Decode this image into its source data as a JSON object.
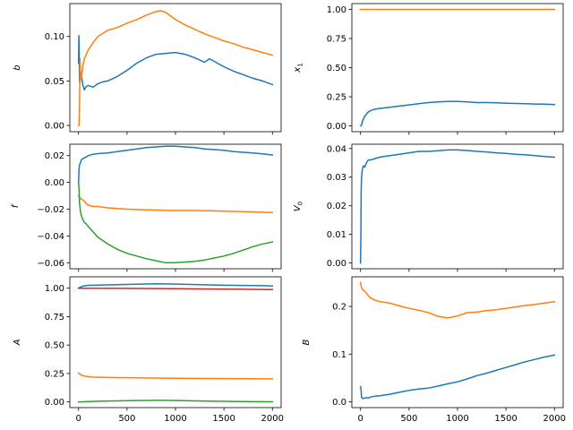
{
  "chart_data": [
    {
      "type": "line",
      "ylabel": "b",
      "xlim": [
        -90,
        2090
      ],
      "ylim": [
        -0.007,
        0.137
      ],
      "yticks": [
        0.0,
        0.05,
        0.1
      ],
      "ytick_labels": [
        "0.00",
        "0.05",
        "0.10"
      ],
      "xticks": [
        0,
        500,
        1000,
        1500,
        2000
      ],
      "xtick_labels": [],
      "series": [
        {
          "color": "#1f77b4",
          "x": [
            0,
            3,
            6,
            10,
            15,
            20,
            30,
            45,
            60,
            80,
            100,
            150,
            200,
            250,
            300,
            400,
            500,
            600,
            700,
            800,
            900,
            1000,
            1100,
            1200,
            1300,
            1350,
            1400,
            1500,
            1600,
            1700,
            1800,
            1900,
            2000
          ],
          "y": [
            0.07,
            0.101,
            0.085,
            0.05,
            0.048,
            0.06,
            0.057,
            0.045,
            0.04,
            0.044,
            0.045,
            0.043,
            0.047,
            0.049,
            0.05,
            0.055,
            0.062,
            0.07,
            0.076,
            0.08,
            0.081,
            0.082,
            0.08,
            0.076,
            0.071,
            0.075,
            0.072,
            0.066,
            0.061,
            0.057,
            0.053,
            0.05,
            0.046
          ]
        },
        {
          "color": "#ff7f0e",
          "x": [
            0,
            5,
            10,
            15,
            20,
            30,
            40,
            60,
            80,
            100,
            150,
            200,
            300,
            400,
            500,
            600,
            700,
            800,
            850,
            900,
            1000,
            1100,
            1200,
            1300,
            1400,
            1500,
            1600,
            1700,
            1800,
            1900,
            2000
          ],
          "y": [
            0.0,
            0.0,
            0.02,
            0.075,
            0.06,
            0.052,
            0.065,
            0.075,
            0.08,
            0.085,
            0.093,
            0.1,
            0.107,
            0.11,
            0.115,
            0.119,
            0.124,
            0.128,
            0.129,
            0.127,
            0.119,
            0.113,
            0.108,
            0.103,
            0.099,
            0.095,
            0.092,
            0.088,
            0.085,
            0.082,
            0.079
          ]
        }
      ]
    },
    {
      "type": "line",
      "ylabel": "x1",
      "xlim": [
        -90,
        2090
      ],
      "ylim": [
        -0.05,
        1.05
      ],
      "yticks": [
        0.0,
        0.25,
        0.5,
        0.75,
        1.0
      ],
      "ytick_labels": [
        "0.00",
        "0.25",
        "0.50",
        "0.75",
        "1.00"
      ],
      "xticks": [
        0,
        500,
        1000,
        1500,
        2000
      ],
      "xtick_labels": [],
      "series": [
        {
          "color": "#1f77b4",
          "x": [
            0,
            10,
            20,
            40,
            60,
            80,
            100,
            150,
            200,
            300,
            400,
            500,
            600,
            700,
            800,
            900,
            1000,
            1100,
            1200,
            1300,
            1400,
            1500,
            1600,
            1700,
            1800,
            1900,
            2000
          ],
          "y": [
            0.0,
            0.005,
            0.04,
            0.08,
            0.1,
            0.12,
            0.13,
            0.145,
            0.15,
            0.16,
            0.17,
            0.18,
            0.19,
            0.2,
            0.205,
            0.21,
            0.21,
            0.205,
            0.2,
            0.2,
            0.198,
            0.195,
            0.192,
            0.19,
            0.188,
            0.186,
            0.183
          ]
        },
        {
          "color": "#ff7f0e",
          "x": [
            0,
            2000
          ],
          "y": [
            1.0,
            1.0
          ]
        }
      ]
    },
    {
      "type": "line",
      "ylabel": "f",
      "xlim": [
        -90,
        2090
      ],
      "ylim": [
        -0.0645,
        0.0285
      ],
      "yticks": [
        -0.06,
        -0.04,
        -0.02,
        0.0,
        0.02
      ],
      "ytick_labels": [
        "−0.06",
        "−0.04",
        "−0.02",
        "0.00",
        "0.02"
      ],
      "xticks": [
        0,
        500,
        1000,
        1500,
        2000
      ],
      "xtick_labels": [],
      "series": [
        {
          "color": "#1f77b4",
          "x": [
            0,
            5,
            10,
            20,
            30,
            50,
            80,
            100,
            150,
            200,
            300,
            400,
            500,
            600,
            700,
            800,
            900,
            1000,
            1100,
            1200,
            1300,
            1400,
            1500,
            1600,
            1700,
            1800,
            1900,
            2000
          ],
          "y": [
            0.0,
            0.01,
            0.013,
            0.015,
            0.017,
            0.018,
            0.019,
            0.02,
            0.021,
            0.0215,
            0.022,
            0.023,
            0.024,
            0.025,
            0.026,
            0.0265,
            0.027,
            0.027,
            0.0265,
            0.026,
            0.025,
            0.0245,
            0.024,
            0.023,
            0.0225,
            0.022,
            0.0213,
            0.0205
          ]
        },
        {
          "color": "#ff7f0e",
          "x": [
            0,
            10,
            20,
            40,
            60,
            80,
            100,
            150,
            200,
            300,
            400,
            500,
            600,
            800,
            1000,
            1200,
            1400,
            1600,
            1800,
            2000
          ],
          "y": [
            -0.01,
            -0.011,
            -0.012,
            -0.013,
            -0.014,
            -0.016,
            -0.017,
            -0.018,
            -0.018,
            -0.019,
            -0.0195,
            -0.02,
            -0.0203,
            -0.0207,
            -0.021,
            -0.021,
            -0.0213,
            -0.0217,
            -0.022,
            -0.0225
          ]
        },
        {
          "color": "#2ca02c",
          "x": [
            0,
            5,
            10,
            20,
            30,
            40,
            60,
            80,
            100,
            150,
            200,
            300,
            400,
            500,
            600,
            700,
            800,
            900,
            1000,
            1100,
            1200,
            1300,
            1400,
            1500,
            1600,
            1700,
            1800,
            1900,
            2000
          ],
          "y": [
            0.0,
            -0.005,
            -0.015,
            -0.022,
            -0.025,
            -0.027,
            -0.03,
            -0.031,
            -0.033,
            -0.037,
            -0.041,
            -0.046,
            -0.05,
            -0.053,
            -0.055,
            -0.057,
            -0.0585,
            -0.06,
            -0.06,
            -0.0595,
            -0.059,
            -0.058,
            -0.0565,
            -0.055,
            -0.053,
            -0.0505,
            -0.048,
            -0.046,
            -0.0445
          ]
        }
      ]
    },
    {
      "type": "line",
      "ylabel": "V0",
      "xlim": [
        -90,
        2090
      ],
      "ylim": [
        -0.002,
        0.0415
      ],
      "yticks": [
        0.0,
        0.01,
        0.02,
        0.03,
        0.04
      ],
      "ytick_labels": [
        "0.00",
        "0.01",
        "0.02",
        "0.03",
        "0.04"
      ],
      "xticks": [
        0,
        500,
        1000,
        1500,
        2000
      ],
      "xtick_labels": [],
      "series": [
        {
          "color": "#1f77b4",
          "x": [
            0,
            3,
            6,
            10,
            15,
            20,
            30,
            40,
            50,
            60,
            80,
            100,
            150,
            200,
            300,
            400,
            500,
            600,
            700,
            800,
            900,
            1000,
            1100,
            1200,
            1300,
            1400,
            1500,
            1600,
            1700,
            1800,
            1900,
            2000
          ],
          "y": [
            0.0,
            0.01,
            0.025,
            0.03,
            0.032,
            0.033,
            0.034,
            0.0335,
            0.034,
            0.035,
            0.036,
            0.036,
            0.0365,
            0.037,
            0.0375,
            0.038,
            0.0385,
            0.039,
            0.039,
            0.0392,
            0.0395,
            0.0395,
            0.0393,
            0.039,
            0.0388,
            0.0385,
            0.0383,
            0.038,
            0.0378,
            0.0375,
            0.0372,
            0.037
          ]
        }
      ]
    },
    {
      "type": "line",
      "ylabel": "A",
      "xlim": [
        -90,
        2090
      ],
      "ylim": [
        -0.05,
        1.1
      ],
      "yticks": [
        0.0,
        0.25,
        0.5,
        0.75,
        1.0
      ],
      "ytick_labels": [
        "0.00",
        "0.25",
        "0.50",
        "0.75",
        "1.00"
      ],
      "xticks": [
        0,
        500,
        1000,
        1500,
        2000
      ],
      "xtick_labels": [
        "0",
        "500",
        "1000",
        "1500",
        "2000"
      ],
      "series": [
        {
          "color": "#1f77b4",
          "x": [
            0,
            20,
            50,
            100,
            200,
            300,
            400,
            500,
            600,
            700,
            800,
            900,
            1000,
            1100,
            1200,
            1300,
            1400,
            1500,
            1600,
            1700,
            1800,
            1900,
            2000
          ],
          "y": [
            1.0,
            1.01,
            1.02,
            1.025,
            1.027,
            1.029,
            1.031,
            1.033,
            1.035,
            1.037,
            1.039,
            1.038,
            1.036,
            1.034,
            1.032,
            1.03,
            1.028,
            1.026,
            1.025,
            1.024,
            1.023,
            1.022,
            1.02
          ]
        },
        {
          "color": "#d62728",
          "x": [
            0,
            500,
            1000,
            1500,
            2000
          ],
          "y": [
            1.0,
            0.998,
            0.995,
            0.992,
            0.988
          ]
        },
        {
          "color": "#ff7f0e",
          "x": [
            0,
            20,
            50,
            100,
            150,
            200,
            300,
            400,
            600,
            800,
            1000,
            1200,
            1400,
            1600,
            1800,
            2000
          ],
          "y": [
            0.255,
            0.24,
            0.23,
            0.222,
            0.218,
            0.217,
            0.215,
            0.214,
            0.212,
            0.21,
            0.208,
            0.207,
            0.206,
            0.205,
            0.204,
            0.203
          ]
        },
        {
          "color": "#2ca02c",
          "x": [
            0,
            100,
            200,
            400,
            600,
            800,
            900,
            1000,
            1200,
            1400,
            1600,
            1800,
            2000
          ],
          "y": [
            0.0,
            0.003,
            0.006,
            0.009,
            0.012,
            0.014,
            0.014,
            0.012,
            0.009,
            0.006,
            0.004,
            0.002,
            0.001
          ]
        }
      ]
    },
    {
      "type": "line",
      "ylabel": "B",
      "xlim": [
        -90,
        2090
      ],
      "ylim": [
        -0.012,
        0.262
      ],
      "yticks": [
        0.0,
        0.1,
        0.2
      ],
      "ytick_labels": [
        "0.0",
        "0.1",
        "0.2"
      ],
      "xticks": [
        0,
        500,
        1000,
        1500,
        2000
      ],
      "xtick_labels": [
        "0",
        "500",
        "1000",
        "1500",
        "2000"
      ],
      "series": [
        {
          "color": "#1f77b4",
          "x": [
            0,
            5,
            10,
            20,
            40,
            60,
            80,
            100,
            150,
            200,
            300,
            400,
            500,
            600,
            700,
            800,
            900,
            1000,
            1100,
            1200,
            1300,
            1400,
            1500,
            1600,
            1700,
            1800,
            1900,
            2000
          ],
          "y": [
            0.032,
            0.025,
            0.01,
            0.007,
            0.008,
            0.009,
            0.008,
            0.01,
            0.012,
            0.013,
            0.016,
            0.02,
            0.024,
            0.027,
            0.029,
            0.033,
            0.038,
            0.042,
            0.048,
            0.055,
            0.06,
            0.066,
            0.072,
            0.078,
            0.084,
            0.089,
            0.094,
            0.098
          ]
        },
        {
          "color": "#ff7f0e",
          "x": [
            0,
            5,
            10,
            20,
            40,
            60,
            80,
            100,
            150,
            200,
            300,
            400,
            500,
            600,
            700,
            800,
            900,
            1000,
            1100,
            1200,
            1300,
            1400,
            1500,
            1600,
            1700,
            1800,
            1900,
            2000
          ],
          "y": [
            0.25,
            0.243,
            0.24,
            0.235,
            0.232,
            0.228,
            0.222,
            0.218,
            0.213,
            0.21,
            0.207,
            0.201,
            0.196,
            0.192,
            0.187,
            0.179,
            0.176,
            0.18,
            0.187,
            0.188,
            0.191,
            0.193,
            0.196,
            0.199,
            0.202,
            0.204,
            0.207,
            0.21
          ]
        }
      ]
    }
  ]
}
